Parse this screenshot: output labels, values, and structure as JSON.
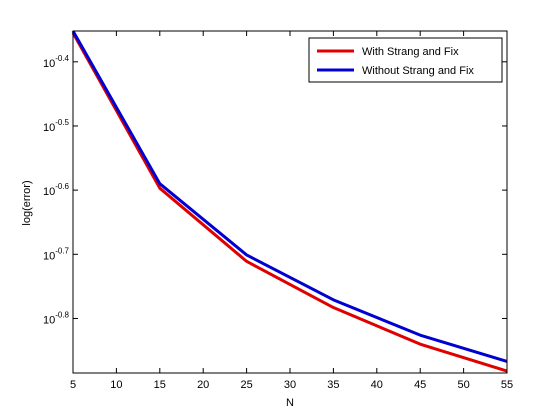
{
  "chart_data": {
    "type": "line",
    "title": "",
    "xlabel": "N",
    "ylabel": "log(error)",
    "x": [
      5,
      15,
      25,
      35,
      45,
      55
    ],
    "xlim": [
      5,
      55
    ],
    "xticks": [
      5,
      10,
      15,
      20,
      25,
      30,
      35,
      40,
      45,
      50,
      55
    ],
    "yscale": "log10",
    "ylim_log10": [
      -0.885,
      -0.352
    ],
    "yticks": [
      {
        "base": "10",
        "exp": "-0.4"
      },
      {
        "base": "10",
        "exp": "-0.5"
      },
      {
        "base": "10",
        "exp": "-0.6"
      },
      {
        "base": "10",
        "exp": "-0.7"
      },
      {
        "base": "10",
        "exp": "-0.8"
      }
    ],
    "grid": false,
    "legend_position": "top-right",
    "series": [
      {
        "name": "With Strang and Fix",
        "color": "#e00000",
        "log10_values": [
          -0.355,
          -0.597,
          -0.711,
          -0.783,
          -0.84,
          -0.882
        ]
      },
      {
        "name": "Without Strang and Fix",
        "color": "#0000d0",
        "log10_values": [
          -0.352,
          -0.59,
          -0.701,
          -0.771,
          -0.826,
          -0.867
        ]
      }
    ]
  }
}
